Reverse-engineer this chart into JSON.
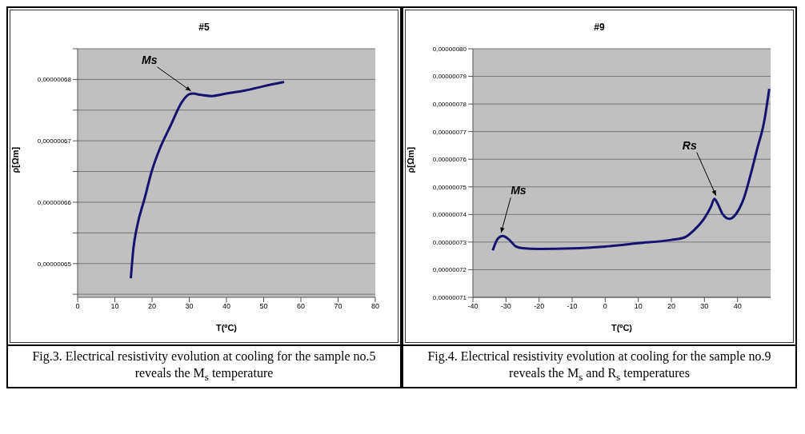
{
  "chart_data": [
    {
      "type": "line",
      "title": "#5",
      "xlabel": "T(ºC)",
      "ylabel": "ρ[Ωm]",
      "grid": "y",
      "marker": "none",
      "line_style": "solid",
      "legend": false,
      "xlim": [
        0,
        80
      ],
      "xticks": [
        0,
        10,
        20,
        30,
        40,
        50,
        60,
        70,
        80
      ],
      "ylim": [
        6.445e-07,
        6.85e-07
      ],
      "yticks": [
        {
          "value": 6.45e-07,
          "label": null
        },
        {
          "value": 6.5e-07,
          "label": "0,00000065"
        },
        {
          "value": 6.55e-07,
          "label": null
        },
        {
          "value": 6.6e-07,
          "label": "0,00000066"
        },
        {
          "value": 6.65e-07,
          "label": null
        },
        {
          "value": 6.7e-07,
          "label": "0,00000067"
        },
        {
          "value": 6.75e-07,
          "label": null
        },
        {
          "value": 6.8e-07,
          "label": "0,00000068"
        },
        {
          "value": 6.85e-07,
          "label": null
        }
      ],
      "series": [
        {
          "color": "#14146e",
          "x": [
            14.3,
            15,
            16,
            18,
            20,
            22,
            25,
            28,
            30,
            31,
            33,
            36,
            40,
            45,
            50,
            55.5
          ],
          "values": [
            6.476e-07,
            6.525e-07,
            6.561e-07,
            6.606e-07,
            6.652e-07,
            6.686e-07,
            6.725e-07,
            6.763e-07,
            6.776e-07,
            6.777e-07,
            6.775e-07,
            6.773e-07,
            6.777e-07,
            6.782e-07,
            6.789e-07,
            6.796e-07
          ]
        }
      ],
      "annotations": [
        {
          "text": "Ms",
          "x": 30,
          "y": 6.776e-07
        },
        "Fig.3. Electrical resistivity evolution at cooling for the sample no.5 reveals the M$_{s}$ temperature"
      ]
    },
    {
      "type": "line",
      "title": "#9",
      "xlabel": "T(ºC)",
      "ylabel": "ρ[Ωm]",
      "grid": "y",
      "marker": "none",
      "line_style": "solid",
      "legend": false,
      "xlim": [
        -40,
        50
      ],
      "xticks": [
        -40,
        -30,
        -20,
        -10,
        0,
        10,
        20,
        30,
        40
      ],
      "ylim": [
        7.1e-07,
        8e-07
      ],
      "yticks": [
        {
          "value": 7.1e-07,
          "label": "0,00000071"
        },
        {
          "value": 7.2e-07,
          "label": "0,00000072"
        },
        {
          "value": 7.3e-07,
          "label": "0,00000073"
        },
        {
          "value": 7.4e-07,
          "label": "0,00000074"
        },
        {
          "value": 7.5e-07,
          "label": "0,00000075"
        },
        {
          "value": 7.6e-07,
          "label": "0,00000076"
        },
        {
          "value": 7.7e-07,
          "label": "0,00000077"
        },
        {
          "value": 7.8e-07,
          "label": "0,00000078"
        },
        {
          "value": 7.9e-07,
          "label": "0,00000079"
        },
        {
          "value": 8e-07,
          "label": "0,00000080"
        }
      ],
      "series": [
        {
          "color": "#14146e",
          "x": [
            -34,
            -32.5,
            -31,
            -29,
            -27,
            -25,
            -20,
            -10,
            0,
            10,
            20,
            24,
            27,
            30,
            32,
            33,
            34,
            35.5,
            37.5,
            39.5,
            42,
            44,
            46,
            48,
            49.6
          ],
          "values": [
            7.27e-07,
            7.312e-07,
            7.322e-07,
            7.308e-07,
            7.284e-07,
            7.278e-07,
            7.275e-07,
            7.277e-07,
            7.284e-07,
            7.296e-07,
            7.308e-07,
            7.317e-07,
            7.345e-07,
            7.387e-07,
            7.429e-07,
            7.457e-07,
            7.439e-07,
            7.401e-07,
            7.384e-07,
            7.401e-07,
            7.462e-07,
            7.546e-07,
            7.64e-07,
            7.733e-07,
            7.855e-07
          ]
        }
      ],
      "annotations": [
        {
          "text": "Ms",
          "x": -31,
          "y": 7.322e-07
        },
        {
          "text": "Rs",
          "x": 33,
          "y": 7.457e-07
        },
        "Fig.4. Electrical resistivity evolution at cooling for the sample no.9  reveals the M$_{s}$ and R$_{s}$ temperatures"
      ]
    }
  ]
}
